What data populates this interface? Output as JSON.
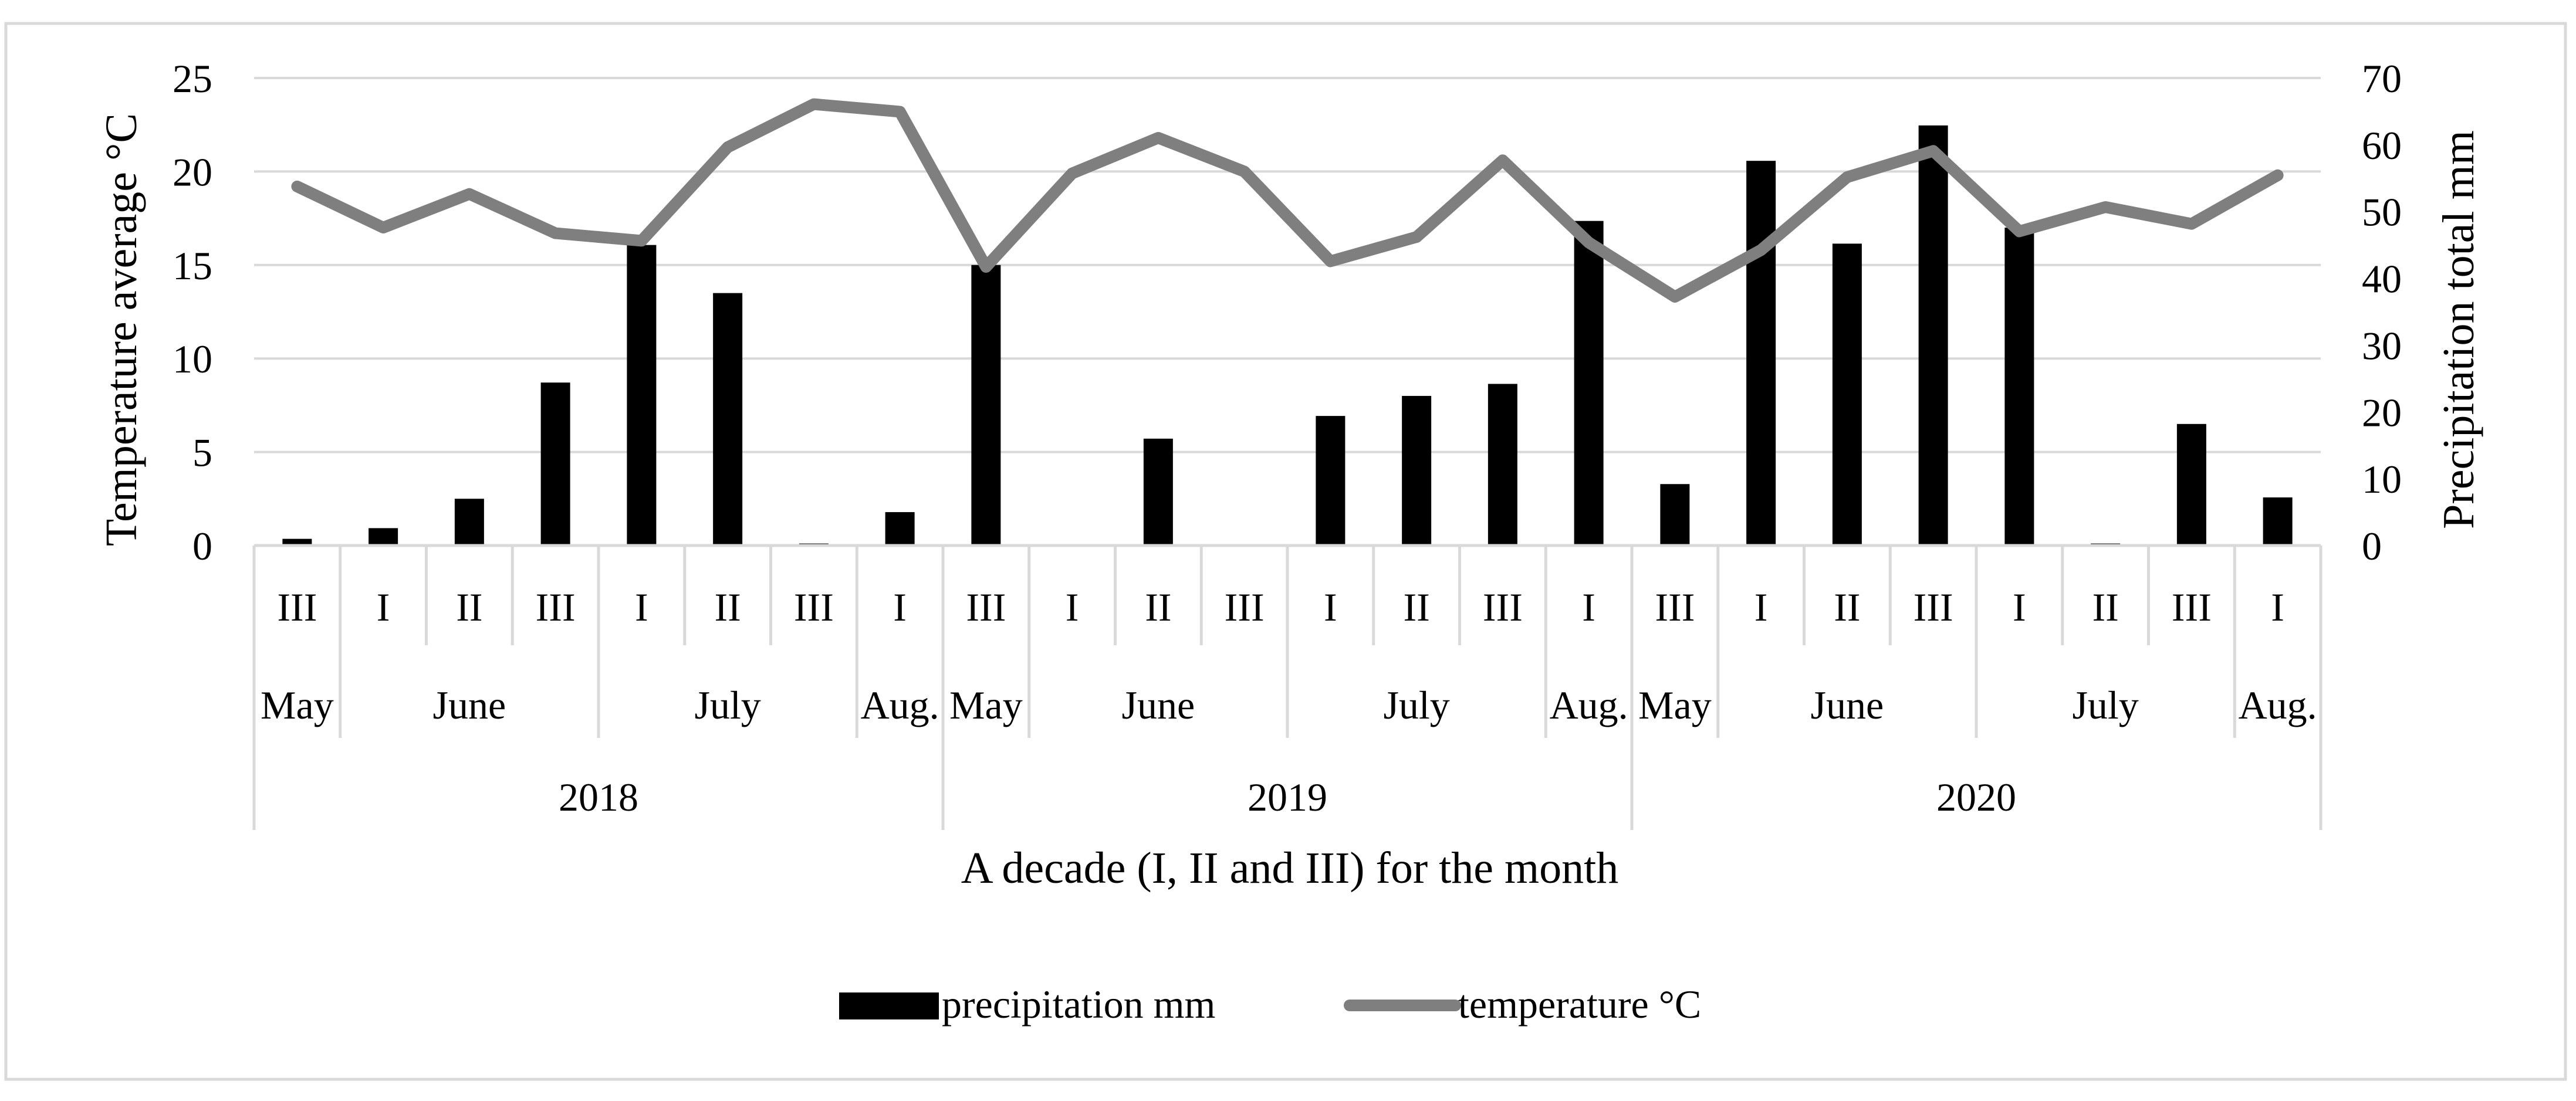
{
  "colors": {
    "precipitation": "#000000",
    "temperature": "#7f7f7f",
    "grid": "#d9d9d9",
    "frame": "#d9d9d9"
  },
  "chart_data": {
    "type": "bar+line",
    "title": "",
    "xlabel": "A decade (I, II and III) for the month",
    "ylabel_left": "Temperature average °C",
    "ylabel_right": "Precipitation total mm",
    "ylim_left": [
      0,
      25
    ],
    "ylim_right": [
      0,
      70
    ],
    "left_ticks": [
      "0",
      "5",
      "10",
      "15",
      "20",
      "25"
    ],
    "right_ticks": [
      "0",
      "10",
      "20",
      "30",
      "40",
      "50",
      "60",
      "70"
    ],
    "decades": [
      "III",
      "I",
      "II",
      "III",
      "I",
      "II",
      "III",
      "I",
      "III",
      "I",
      "II",
      "III",
      "I",
      "II",
      "III",
      "I",
      "III",
      "I",
      "II",
      "III",
      "I",
      "II",
      "III",
      "I"
    ],
    "months": [
      {
        "label": "May",
        "start": 0,
        "span": 1
      },
      {
        "label": "June",
        "start": 1,
        "span": 3
      },
      {
        "label": "July",
        "start": 4,
        "span": 3
      },
      {
        "label": "Aug.",
        "start": 7,
        "span": 1
      },
      {
        "label": "May",
        "start": 8,
        "span": 1
      },
      {
        "label": "June",
        "start": 9,
        "span": 3
      },
      {
        "label": "July",
        "start": 12,
        "span": 3
      },
      {
        "label": "Aug.",
        "start": 15,
        "span": 1
      },
      {
        "label": "May",
        "start": 16,
        "span": 1
      },
      {
        "label": "June",
        "start": 17,
        "span": 3
      },
      {
        "label": "July",
        "start": 20,
        "span": 3
      },
      {
        "label": "Aug.",
        "start": 23,
        "span": 1
      }
    ],
    "years": [
      {
        "label": "2018",
        "start": 0,
        "span": 8
      },
      {
        "label": "2019",
        "start": 8,
        "span": 8
      },
      {
        "label": "2020",
        "start": 16,
        "span": 8
      }
    ],
    "series": [
      {
        "name": "precipitation mm",
        "type": "bar",
        "axis": "right",
        "values": [
          1,
          2.6,
          7,
          24.4,
          45,
          37.8,
          0.3,
          5,
          42,
          0,
          16,
          0,
          19.4,
          22.4,
          24.2,
          48.6,
          9.2,
          57.6,
          45.2,
          62.9,
          47.6,
          0.3,
          18.2,
          7.2
        ]
      },
      {
        "name": "temperature °C",
        "type": "line",
        "axis": "left",
        "values": [
          19.2,
          17,
          18.8,
          16.7,
          16.3,
          21.3,
          23.6,
          23.2,
          14.9,
          19.9,
          21.8,
          20,
          15.2,
          16.5,
          20.6,
          16.2,
          13.3,
          15.8,
          19.7,
          21.1,
          16.8,
          18.1,
          17.2,
          19.8
        ]
      }
    ],
    "legend": [
      "precipitation mm",
      "temperature °C"
    ],
    "legend_position": "bottom",
    "grid": true
  }
}
